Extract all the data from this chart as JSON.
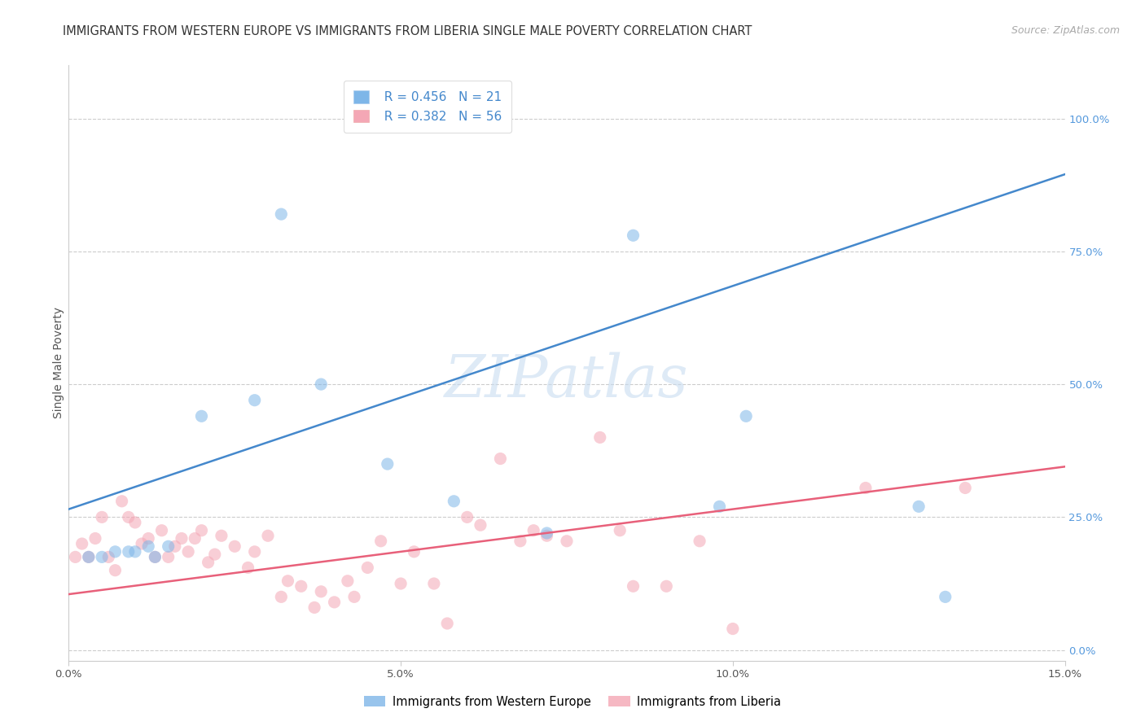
{
  "title": "IMMIGRANTS FROM WESTERN EUROPE VS IMMIGRANTS FROM LIBERIA SINGLE MALE POVERTY CORRELATION CHART",
  "source": "Source: ZipAtlas.com",
  "ylabel": "Single Male Poverty",
  "legend_label_1": "Immigrants from Western Europe",
  "legend_label_2": "Immigrants from Liberia",
  "legend_r1": "R = 0.456",
  "legend_n1": "N = 21",
  "legend_r2": "R = 0.382",
  "legend_n2": "N = 56",
  "xlim": [
    0.0,
    0.15
  ],
  "ylim": [
    -0.02,
    1.1
  ],
  "xticks": [
    0.0,
    0.05,
    0.1,
    0.15
  ],
  "xtick_labels": [
    "0.0%",
    "5.0%",
    "10.0%",
    "15.0%"
  ],
  "yticks_right": [
    0.0,
    0.25,
    0.5,
    0.75,
    1.0
  ],
  "ytick_labels_right": [
    "0.0%",
    "25.0%",
    "50.0%",
    "75.0%",
    "100.0%"
  ],
  "color_blue": "#7EB6E8",
  "color_pink": "#F4A7B5",
  "color_blue_line": "#4488CC",
  "color_pink_line": "#E8607A",
  "color_blue_text": "#4488CC",
  "color_pink_text": "#4488CC",
  "color_right_tick": "#5599DD",
  "background": "#FFFFFF",
  "grid_color": "#CCCCCC",
  "watermark": "ZIPatlas",
  "blue_scatter_x": [
    0.003,
    0.005,
    0.007,
    0.009,
    0.01,
    0.012,
    0.013,
    0.015,
    0.02,
    0.028,
    0.032,
    0.038,
    0.048,
    0.058,
    0.062,
    0.072,
    0.085,
    0.098,
    0.102,
    0.128,
    0.132
  ],
  "blue_scatter_y": [
    0.175,
    0.175,
    0.185,
    0.185,
    0.185,
    0.195,
    0.175,
    0.195,
    0.44,
    0.47,
    0.82,
    0.5,
    0.35,
    0.28,
    1.0,
    0.22,
    0.78,
    0.27,
    0.44,
    0.27,
    0.1
  ],
  "pink_scatter_x": [
    0.001,
    0.002,
    0.003,
    0.004,
    0.005,
    0.006,
    0.007,
    0.008,
    0.009,
    0.01,
    0.011,
    0.012,
    0.013,
    0.014,
    0.015,
    0.016,
    0.017,
    0.018,
    0.019,
    0.02,
    0.021,
    0.022,
    0.023,
    0.025,
    0.027,
    0.028,
    0.03,
    0.032,
    0.033,
    0.035,
    0.037,
    0.038,
    0.04,
    0.042,
    0.043,
    0.045,
    0.047,
    0.05,
    0.052,
    0.055,
    0.057,
    0.06,
    0.062,
    0.065,
    0.068,
    0.07,
    0.072,
    0.075,
    0.08,
    0.083,
    0.085,
    0.09,
    0.095,
    0.1,
    0.12,
    0.135
  ],
  "pink_scatter_y": [
    0.175,
    0.2,
    0.175,
    0.21,
    0.25,
    0.175,
    0.15,
    0.28,
    0.25,
    0.24,
    0.2,
    0.21,
    0.175,
    0.225,
    0.175,
    0.195,
    0.21,
    0.185,
    0.21,
    0.225,
    0.165,
    0.18,
    0.215,
    0.195,
    0.155,
    0.185,
    0.215,
    0.1,
    0.13,
    0.12,
    0.08,
    0.11,
    0.09,
    0.13,
    0.1,
    0.155,
    0.205,
    0.125,
    0.185,
    0.125,
    0.05,
    0.25,
    0.235,
    0.36,
    0.205,
    0.225,
    0.215,
    0.205,
    0.4,
    0.225,
    0.12,
    0.12,
    0.205,
    0.04,
    0.305,
    0.305
  ],
  "blue_line_x": [
    0.0,
    0.15
  ],
  "blue_line_y": [
    0.265,
    0.895
  ],
  "pink_line_x": [
    0.0,
    0.15
  ],
  "pink_line_y": [
    0.105,
    0.345
  ],
  "title_fontsize": 10.5,
  "source_fontsize": 9,
  "axis_label_fontsize": 10,
  "tick_fontsize": 9.5,
  "legend_fontsize": 11,
  "watermark_fontsize": 52,
  "watermark_color": "#C8DCF0",
  "watermark_alpha": 0.6,
  "scatter_size": 120,
  "scatter_alpha": 0.55,
  "line_width": 1.8
}
